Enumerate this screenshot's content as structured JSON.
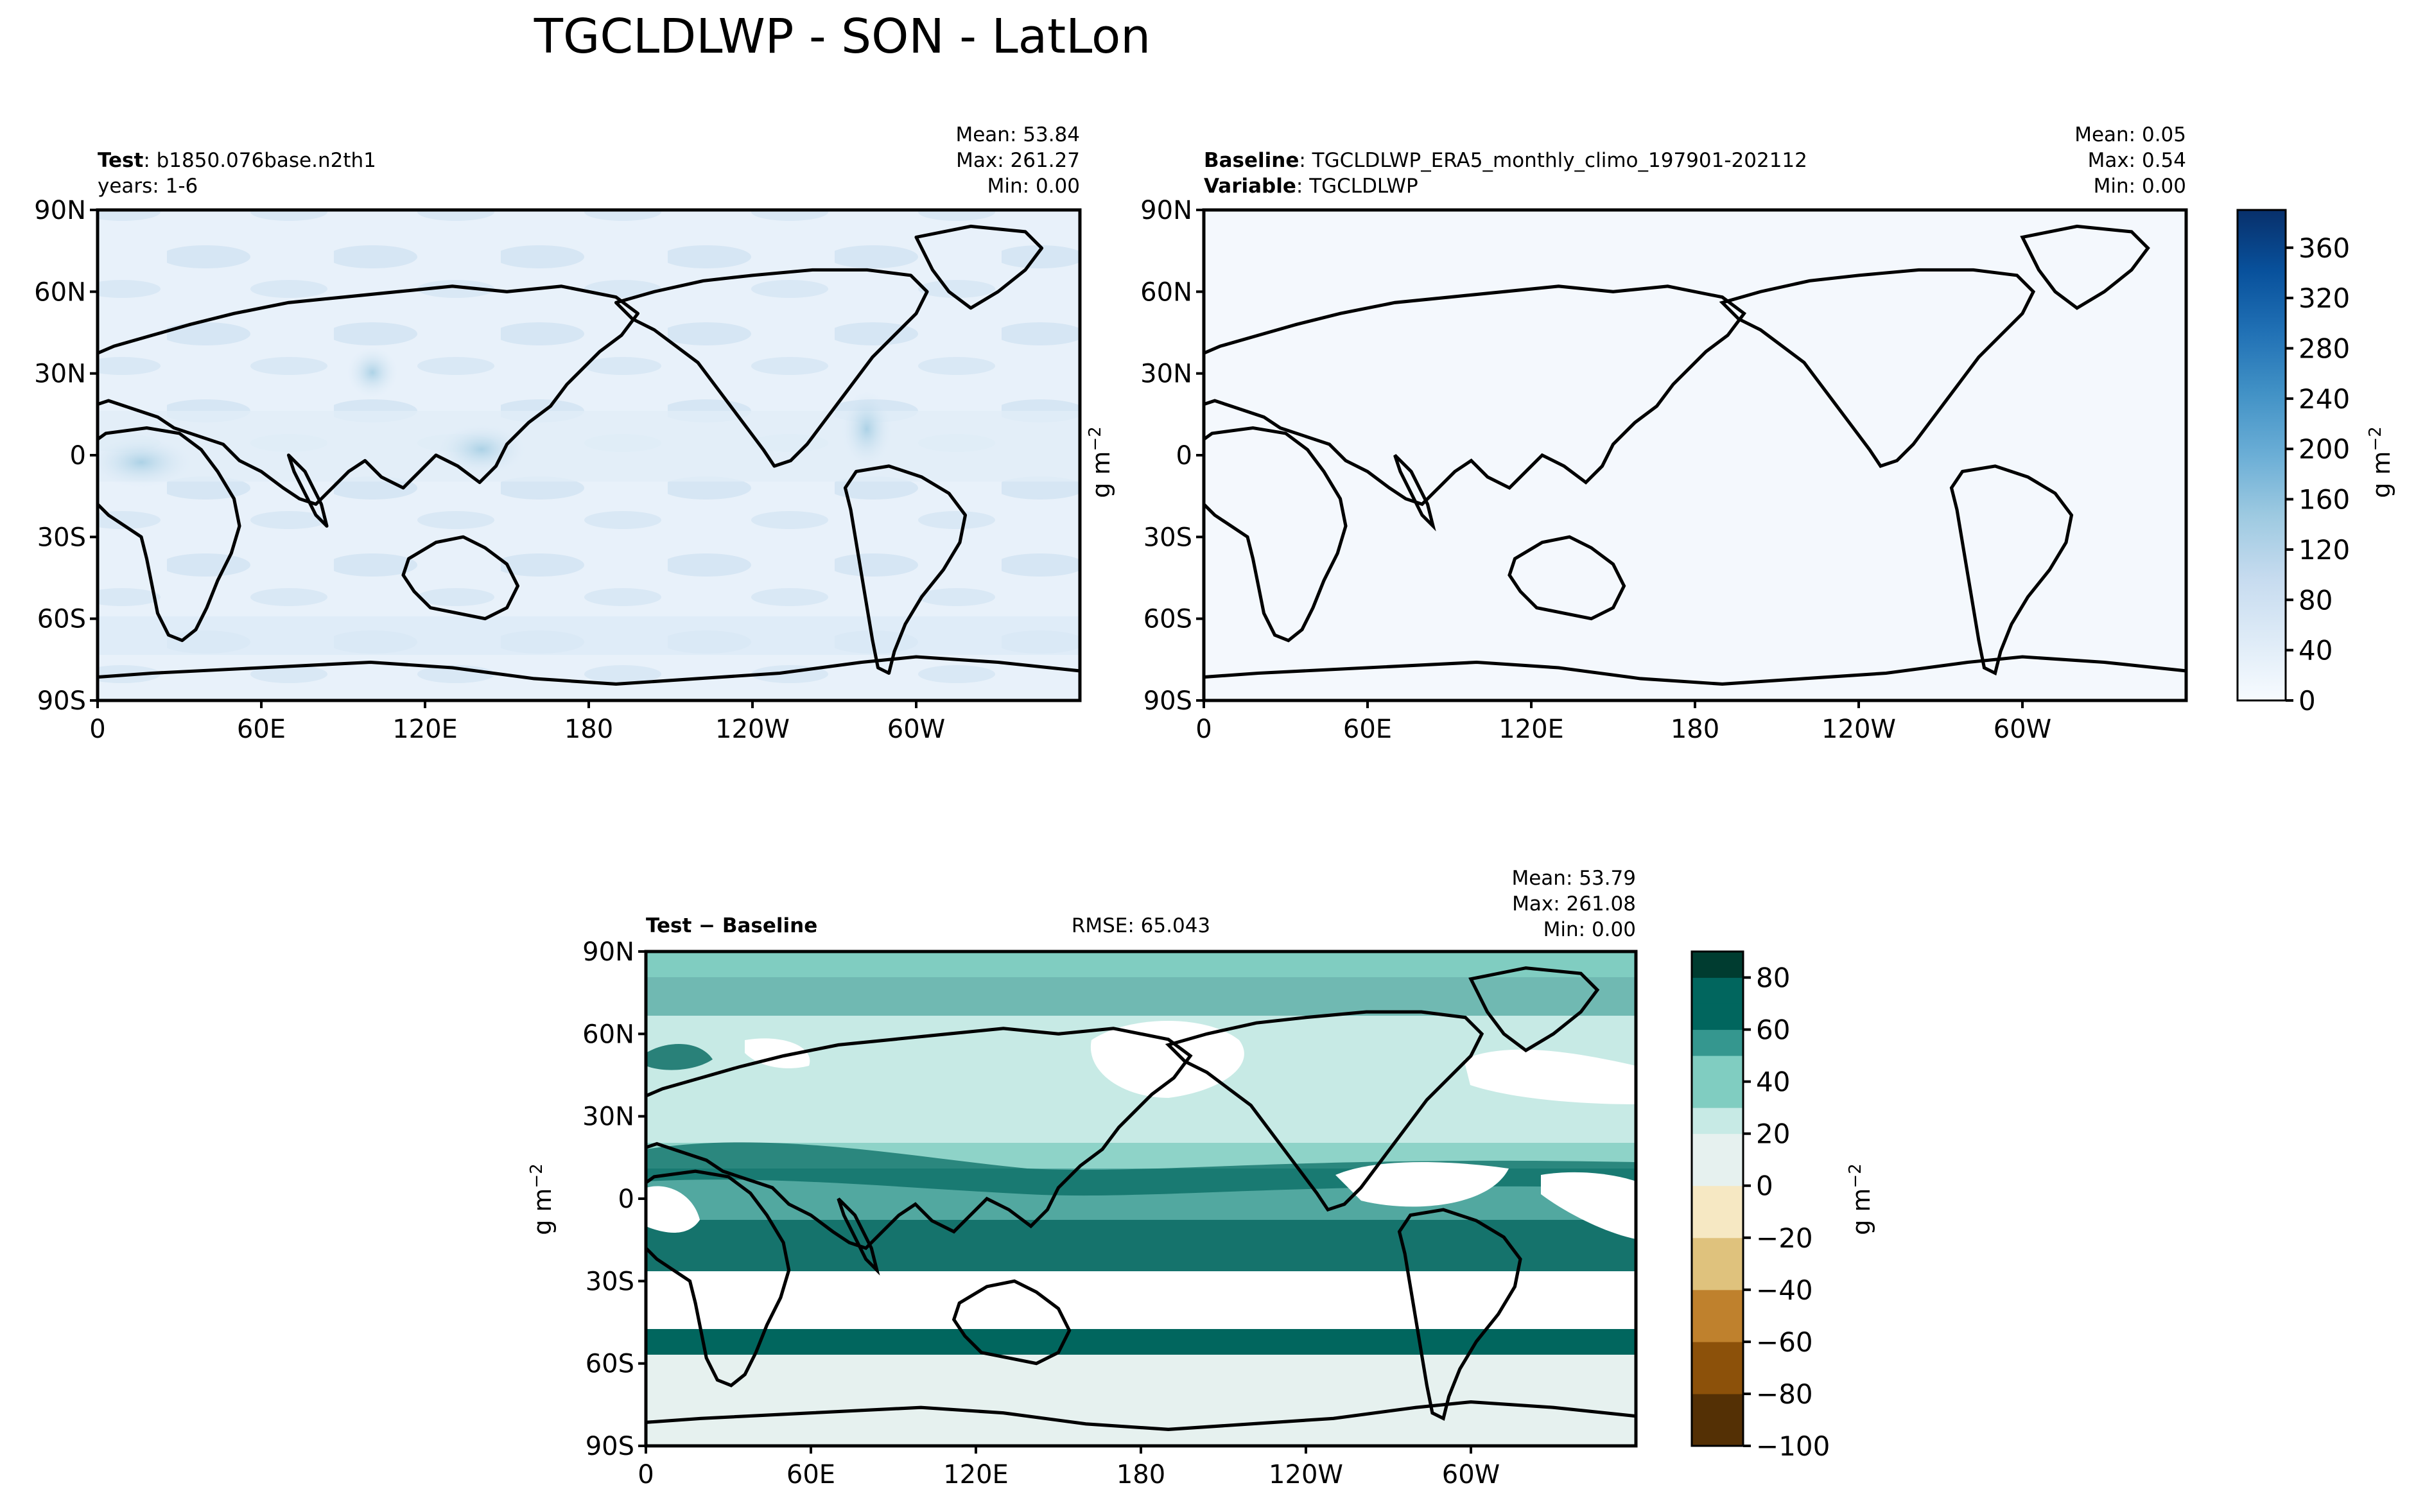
{
  "figure": {
    "title": "TGCLDLWP - SON - LatLon",
    "unit_label": "g m",
    "unit_exponent": "−2"
  },
  "panels": {
    "test": {
      "label_bold": "Test",
      "label_rest": ": b1850.076base.n2th1",
      "years": "years: 1-6",
      "mean": "Mean: 53.84",
      "max": "Max: 261.27",
      "min": "Min:  0.00"
    },
    "baseline": {
      "label_bold": "Baseline",
      "label_rest": ": TGCLDLWP_ERA5_monthly_climo_197901-202112",
      "variable_bold": "Variable",
      "variable_rest": ": TGCLDLWP",
      "mean": "Mean:  0.05",
      "max": "Max:  0.54",
      "min": "Min:  0.00"
    },
    "diff": {
      "label": "Test − Baseline",
      "rmse": "RMSE: 65.043",
      "mean": "Mean: 53.79",
      "max": "Max: 261.08",
      "min": "Min:  0.00"
    }
  },
  "axes": {
    "lat_ticks": [
      "90N",
      "60N",
      "30N",
      "0",
      "30S",
      "60S",
      "90S"
    ],
    "lon_ticks": [
      "0",
      "60E",
      "120E",
      "180",
      "120W",
      "60W"
    ]
  },
  "colors": {
    "blues": [
      "#f7fbff",
      "#deebf7",
      "#c6dbef",
      "#9ecae1",
      "#6baed6",
      "#4292c6",
      "#2171b5",
      "#08519c",
      "#08306b"
    ],
    "brbg_neg": [
      "#543005",
      "#8c510a",
      "#bf812d",
      "#dfc27d",
      "#f6e8c3"
    ],
    "brbg_pos": [
      "#e6f1ef",
      "#c7eae5",
      "#80cdc1",
      "#35978f",
      "#01665e",
      "#003c30"
    ]
  },
  "chart_data": [
    {
      "type": "heatmap",
      "panel": "test",
      "title": "Test : b1850.076base.n2th1",
      "subtitle": "years: 1-6",
      "xlabel": "",
      "ylabel": "",
      "xlim": [
        0,
        360
      ],
      "ylim": [
        -90,
        90
      ],
      "stats": {
        "mean": 53.84,
        "max": 261.27,
        "min": 0.0
      },
      "colorbar": {
        "label": "g m−2",
        "range": [
          0,
          390
        ],
        "ticks": [
          0,
          40,
          80,
          120,
          160,
          200,
          240,
          280,
          320,
          360
        ]
      }
    },
    {
      "type": "heatmap",
      "panel": "baseline",
      "title": "Baseline : TGCLDLWP_ERA5_monthly_climo_197901-202112",
      "subtitle": "Variable : TGCLDLWP",
      "xlabel": "",
      "ylabel": "",
      "xlim": [
        0,
        360
      ],
      "ylim": [
        -90,
        90
      ],
      "stats": {
        "mean": 0.05,
        "max": 0.54,
        "min": 0.0
      },
      "colorbar": {
        "label": "g m−2",
        "range": [
          0,
          390
        ],
        "ticks": [
          0,
          40,
          80,
          120,
          160,
          200,
          240,
          280,
          320,
          360
        ]
      }
    },
    {
      "type": "heatmap",
      "panel": "diff",
      "title": "Test − Baseline",
      "subtitle": "RMSE: 65.043",
      "xlabel": "",
      "ylabel": "",
      "xlim": [
        0,
        360
      ],
      "ylim": [
        -90,
        90
      ],
      "stats": {
        "mean": 53.79,
        "max": 261.08,
        "min": 0.0,
        "rmse": 65.043
      },
      "colorbar": {
        "label": "g m−2",
        "range": [
          -100,
          90
        ],
        "ticks": [
          -100,
          -80,
          -60,
          -40,
          -20,
          0,
          20,
          40,
          60,
          80
        ]
      }
    }
  ]
}
